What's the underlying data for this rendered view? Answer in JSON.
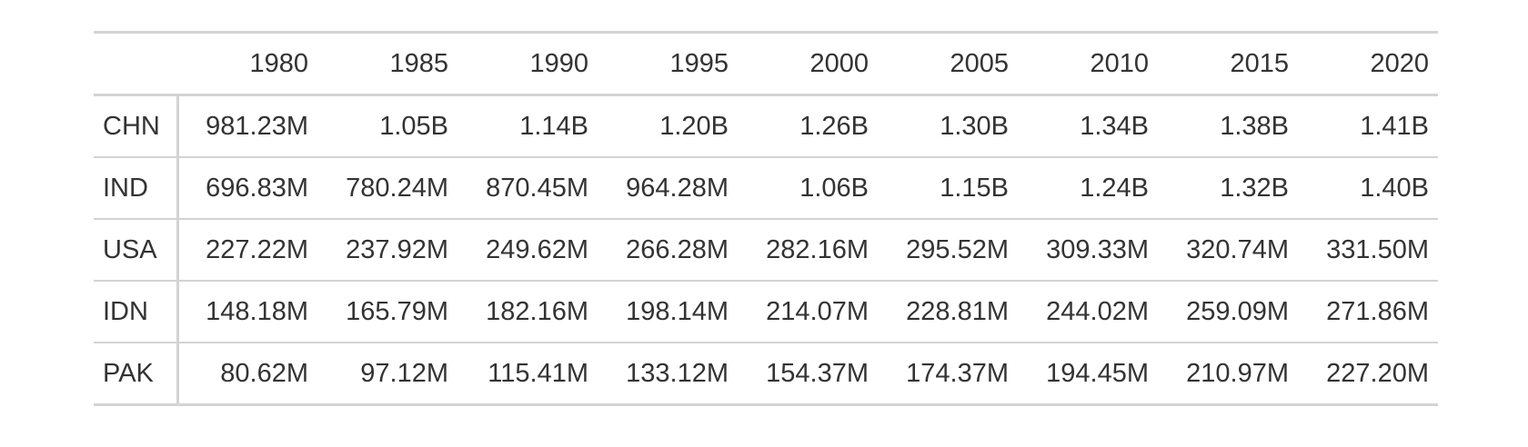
{
  "chart_data": {
    "type": "table",
    "columns": [
      "1980",
      "1985",
      "1990",
      "1995",
      "2000",
      "2005",
      "2010",
      "2015",
      "2020"
    ],
    "rows": [
      {
        "label": "CHN",
        "values": [
          "981.23M",
          "1.05B",
          "1.14B",
          "1.20B",
          "1.26B",
          "1.30B",
          "1.34B",
          "1.38B",
          "1.41B"
        ]
      },
      {
        "label": "IND",
        "values": [
          "696.83M",
          "780.24M",
          "870.45M",
          "964.28M",
          "1.06B",
          "1.15B",
          "1.24B",
          "1.32B",
          "1.40B"
        ]
      },
      {
        "label": "USA",
        "values": [
          "227.22M",
          "237.92M",
          "249.62M",
          "266.28M",
          "282.16M",
          "295.52M",
          "309.33M",
          "320.74M",
          "331.50M"
        ]
      },
      {
        "label": "IDN",
        "values": [
          "148.18M",
          "165.79M",
          "182.16M",
          "198.14M",
          "214.07M",
          "228.81M",
          "244.02M",
          "259.09M",
          "271.86M"
        ]
      },
      {
        "label": "PAK",
        "values": [
          "80.62M",
          "97.12M",
          "115.41M",
          "133.12M",
          "154.37M",
          "174.37M",
          "194.45M",
          "210.97M",
          "227.20M"
        ]
      }
    ]
  },
  "colors": {
    "text": "#333333",
    "rule": "#d3d3d3",
    "background": "#ffffff"
  }
}
